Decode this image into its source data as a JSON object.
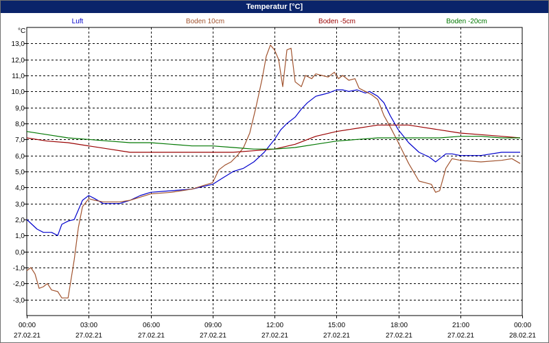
{
  "window": {
    "title": "Temperatur [°C]"
  },
  "chart_data": {
    "type": "line",
    "title": "Temperatur [°C]",
    "ylabel": "°C",
    "ylim": [
      -4,
      14
    ],
    "xlim": [
      "2021-02-27T00:00",
      "2021-02-28T00:00"
    ],
    "grid": true,
    "legend_position": "top",
    "y_ticks": [
      "13,0",
      "12,0",
      "11,0",
      "10,0",
      "9,0",
      "8,0",
      "7,0",
      "6,0",
      "5,0",
      "4,0",
      "3,0",
      "2,0",
      "1,0",
      "0,0",
      "-1,0",
      "-2,0",
      "-3,0"
    ],
    "y_tick_values": [
      13,
      12,
      11,
      10,
      9,
      8,
      7,
      6,
      5,
      4,
      3,
      2,
      1,
      0,
      -1,
      -2,
      -3
    ],
    "x_ticks": [
      {
        "time": "00:00",
        "date": "27.02.21",
        "hour": 0
      },
      {
        "time": "03:00",
        "date": "27.02.21",
        "hour": 3
      },
      {
        "time": "06:00",
        "date": "27.02.21",
        "hour": 6
      },
      {
        "time": "09:00",
        "date": "27.02.21",
        "hour": 9
      },
      {
        "time": "12:00",
        "date": "27.02.21",
        "hour": 12
      },
      {
        "time": "15:00",
        "date": "27.02.21",
        "hour": 15
      },
      {
        "time": "18:00",
        "date": "27.02.21",
        "hour": 18
      },
      {
        "time": "21:00",
        "date": "27.02.21",
        "hour": 21
      },
      {
        "time": "00:00",
        "date": "28.02.21",
        "hour": 24
      }
    ],
    "series": [
      {
        "name": "Luft",
        "color": "#0000cc",
        "x": [
          0,
          0.5,
          0.8,
          1.2,
          1.5,
          1.7,
          2.0,
          2.3,
          2.5,
          2.7,
          3.0,
          3.3,
          3.7,
          4.5,
          5.0,
          5.5,
          6.0,
          7.0,
          8.0,
          9.0,
          9.5,
          10.0,
          10.5,
          11.0,
          11.5,
          12.0,
          12.3,
          12.6,
          13.0,
          13.3,
          13.6,
          14.0,
          14.3,
          14.6,
          15.0,
          15.3,
          15.6,
          16.0,
          16.4,
          16.6,
          17.0,
          17.3,
          17.6,
          18.0,
          18.5,
          19.0,
          19.5,
          19.8,
          20.0,
          20.3,
          20.6,
          21.0,
          22.0,
          23.0,
          23.9
        ],
        "y": [
          2.0,
          1.4,
          1.2,
          1.2,
          1.0,
          1.7,
          1.9,
          2.0,
          2.6,
          3.2,
          3.5,
          3.3,
          3.0,
          3.0,
          3.2,
          3.5,
          3.7,
          3.8,
          3.9,
          4.2,
          4.6,
          5.0,
          5.2,
          5.6,
          6.2,
          7.0,
          7.6,
          8.0,
          8.4,
          8.9,
          9.3,
          9.7,
          9.8,
          9.9,
          10.1,
          10.1,
          10.0,
          10.1,
          9.9,
          10.0,
          9.7,
          9.3,
          8.5,
          7.6,
          6.8,
          6.2,
          5.9,
          5.6,
          5.8,
          6.1,
          6.1,
          6.0,
          6.0,
          6.2,
          6.2
        ]
      },
      {
        "name": "Boden 10cm",
        "color": "#a0522d",
        "x": [
          0,
          0.2,
          0.4,
          0.6,
          0.8,
          1.0,
          1.2,
          1.5,
          1.7,
          2.0,
          2.3,
          2.5,
          2.7,
          3.0,
          3.3,
          3.7,
          4.5,
          5.0,
          5.5,
          6.0,
          7.0,
          8.0,
          9.0,
          9.3,
          9.6,
          9.9,
          10.2,
          10.5,
          10.8,
          11.1,
          11.4,
          11.6,
          11.8,
          12.0,
          12.2,
          12.4,
          12.6,
          12.8,
          13.0,
          13.3,
          13.5,
          13.8,
          14.0,
          14.3,
          14.6,
          14.9,
          15.1,
          15.3,
          15.6,
          15.9,
          16.1,
          16.4,
          16.7,
          17.0,
          17.3,
          17.6,
          18.0,
          18.5,
          19.0,
          19.3,
          19.6,
          19.8,
          20.0,
          20.3,
          20.6,
          21.0,
          22.0,
          23.0,
          23.5,
          23.9
        ],
        "y": [
          -1.2,
          -1.0,
          -1.4,
          -2.3,
          -2.2,
          -2.0,
          -2.4,
          -2.5,
          -2.9,
          -2.9,
          -0.5,
          1.5,
          2.8,
          3.3,
          3.2,
          3.1,
          3.1,
          3.2,
          3.4,
          3.6,
          3.7,
          3.9,
          4.3,
          5.1,
          5.4,
          5.6,
          6.0,
          6.5,
          7.4,
          9.0,
          10.8,
          12.2,
          12.9,
          12.6,
          12.0,
          10.3,
          12.6,
          12.7,
          10.6,
          10.3,
          11.0,
          10.8,
          11.1,
          11.0,
          10.9,
          11.2,
          10.8,
          11.0,
          10.7,
          10.8,
          10.2,
          10.0,
          9.8,
          9.5,
          8.5,
          7.8,
          6.8,
          5.5,
          4.4,
          4.3,
          4.2,
          3.7,
          3.8,
          5.2,
          5.8,
          5.7,
          5.6,
          5.7,
          5.8,
          5.5
        ]
      },
      {
        "name": "Boden -5cm",
        "color": "#990000",
        "x": [
          0,
          1.0,
          2.0,
          3.0,
          4.0,
          5.0,
          6.0,
          7.0,
          8.0,
          9.0,
          10.0,
          11.0,
          12.0,
          13.0,
          14.0,
          15.0,
          16.0,
          16.5,
          17.0,
          17.5,
          18.0,
          18.5,
          19.0,
          20.0,
          21.0,
          22.0,
          23.0,
          23.9
        ],
        "y": [
          7.1,
          6.9,
          6.8,
          6.6,
          6.4,
          6.2,
          6.2,
          6.2,
          6.2,
          6.2,
          6.2,
          6.3,
          6.4,
          6.7,
          7.2,
          7.5,
          7.7,
          7.8,
          7.9,
          7.9,
          7.9,
          7.9,
          7.8,
          7.6,
          7.4,
          7.3,
          7.2,
          7.1
        ]
      },
      {
        "name": "Boden -20cm",
        "color": "#007700",
        "x": [
          0,
          1.0,
          2.0,
          3.0,
          4.0,
          5.0,
          6.0,
          7.0,
          8.0,
          9.0,
          10.0,
          11.0,
          12.0,
          13.0,
          14.0,
          15.0,
          16.0,
          17.0,
          18.0,
          19.0,
          20.0,
          21.0,
          22.0,
          23.0,
          23.9
        ],
        "y": [
          7.5,
          7.3,
          7.1,
          7.0,
          6.9,
          6.8,
          6.8,
          6.7,
          6.6,
          6.6,
          6.5,
          6.4,
          6.4,
          6.5,
          6.7,
          6.9,
          7.0,
          7.1,
          7.1,
          7.1,
          7.1,
          7.2,
          7.2,
          7.1,
          7.1
        ]
      }
    ]
  }
}
